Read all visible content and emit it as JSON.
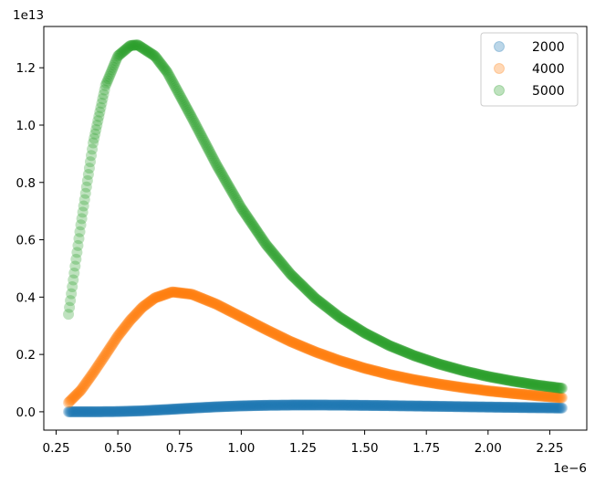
{
  "chart_data": {
    "type": "scatter",
    "title": "",
    "xlabel": "",
    "ylabel": "",
    "x_offset_label": "1e−6",
    "y_offset_label": "1e13",
    "xlim": [
      0.2,
      2.4
    ],
    "ylim": [
      -0.064,
      1.344
    ],
    "xticks": [
      0.25,
      0.5,
      0.75,
      1.0,
      1.25,
      1.5,
      1.75,
      2.0,
      2.25
    ],
    "xtick_labels": [
      "0.25",
      "0.50",
      "0.75",
      "1.00",
      "1.25",
      "1.50",
      "1.75",
      "2.00",
      "2.25"
    ],
    "yticks": [
      0.0,
      0.2,
      0.4,
      0.6,
      0.8,
      1.0,
      1.2
    ],
    "ytick_labels": [
      "0.0",
      "0.2",
      "0.4",
      "0.6",
      "0.8",
      "1.0",
      "1.2"
    ],
    "grid": false,
    "legend_position": "top-right",
    "series": [
      {
        "name": "2000",
        "color": "#1f77b4",
        "x": [
          0.3,
          0.4,
          0.5,
          0.6,
          0.7,
          0.8,
          0.9,
          1.0,
          1.1,
          1.2,
          1.3,
          1.4,
          1.5,
          1.6,
          1.7,
          1.8,
          1.9,
          2.0,
          2.1,
          2.2,
          2.3
        ],
        "y": [
          0.0,
          0.0,
          0.0008,
          0.0034,
          0.0078,
          0.0128,
          0.0172,
          0.0205,
          0.0225,
          0.0234,
          0.0236,
          0.0232,
          0.0224,
          0.0214,
          0.0202,
          0.019,
          0.0177,
          0.0165,
          0.0153,
          0.0142,
          0.0131
        ]
      },
      {
        "name": "4000",
        "color": "#ff7f0e",
        "x": [
          0.3,
          0.35,
          0.4,
          0.45,
          0.5,
          0.55,
          0.6,
          0.65,
          0.72,
          0.8,
          0.9,
          1.0,
          1.1,
          1.2,
          1.3,
          1.4,
          1.5,
          1.6,
          1.7,
          1.8,
          1.9,
          2.0,
          2.1,
          2.2,
          2.3
        ],
        "y": [
          0.032,
          0.075,
          0.135,
          0.199,
          0.264,
          0.319,
          0.365,
          0.397,
          0.418,
          0.41,
          0.375,
          0.331,
          0.287,
          0.245,
          0.209,
          0.178,
          0.152,
          0.13,
          0.112,
          0.097,
          0.084,
          0.073,
          0.064,
          0.056,
          0.049
        ]
      },
      {
        "name": "5000",
        "color": "#2ca02c",
        "x": [
          0.3,
          0.35,
          0.4,
          0.45,
          0.5,
          0.55,
          0.58,
          0.65,
          0.7,
          0.8,
          0.9,
          1.0,
          1.1,
          1.2,
          1.3,
          1.4,
          1.5,
          1.6,
          1.7,
          1.8,
          1.9,
          2.0,
          2.1,
          2.2,
          2.3
        ],
        "y": [
          0.34,
          0.652,
          0.938,
          1.138,
          1.241,
          1.277,
          1.28,
          1.241,
          1.185,
          1.026,
          0.861,
          0.711,
          0.584,
          0.48,
          0.396,
          0.329,
          0.275,
          0.231,
          0.196,
          0.167,
          0.143,
          0.123,
          0.107,
          0.093,
          0.082
        ]
      }
    ]
  }
}
